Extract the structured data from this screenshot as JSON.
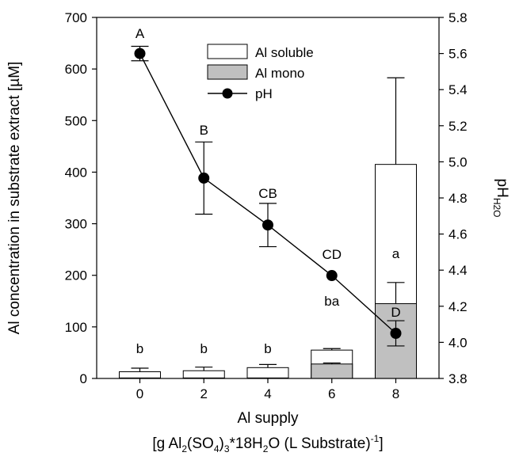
{
  "chart_data": {
    "type": "bar",
    "title": "",
    "x": [
      0,
      2,
      4,
      6,
      8
    ],
    "xlabel": "Al supply",
    "xlabel_units": {
      "prefix": "[g Al",
      "sub1": "2",
      "mid1": "(SO",
      "sub2": "4",
      "mid2": ")",
      "sub3": "3",
      "mid3": "*18H",
      "sub4": "2",
      "mid4": "O (L Substrate)",
      "sup1": "-1",
      "suffix": "]"
    },
    "ylabel": "Al concentration in substrate extract [µM]",
    "ylabel_right": {
      "main": "pH",
      "sub": "H2O"
    },
    "ylim": [
      0,
      700
    ],
    "yticks": [
      0,
      100,
      200,
      300,
      400,
      500,
      600,
      700
    ],
    "ylim_right": [
      3.8,
      5.8
    ],
    "yticks_right": [
      "3.8",
      "4.0",
      "4.2",
      "4.4",
      "4.6",
      "4.8",
      "5.0",
      "5.2",
      "5.4",
      "5.6",
      "5.8"
    ],
    "series": [
      {
        "name": "Al soluble",
        "kind": "bar",
        "color": "#ffffff",
        "values": [
          13,
          15,
          21,
          55,
          415
        ],
        "errors": [
          7,
          7,
          6,
          3,
          168
        ]
      },
      {
        "name": "Al mono",
        "kind": "bar",
        "color": "#c0c0c0",
        "values": [
          1,
          1,
          1,
          28,
          145
        ],
        "errors": [
          0,
          0,
          0,
          2,
          41
        ]
      },
      {
        "name": "pH",
        "kind": "line",
        "color": "#000000",
        "values": [
          5.6,
          4.91,
          4.65,
          4.37,
          4.05
        ],
        "errors": [
          0.04,
          0.2,
          0.12,
          0,
          0.07
        ]
      }
    ],
    "labels_ph": [
      "A",
      "B",
      "CB",
      "CD",
      "D"
    ],
    "labels_soluble": [
      "b",
      "b",
      "b",
      "ba",
      "a"
    ],
    "legend_position": "top-center",
    "grid": false
  }
}
